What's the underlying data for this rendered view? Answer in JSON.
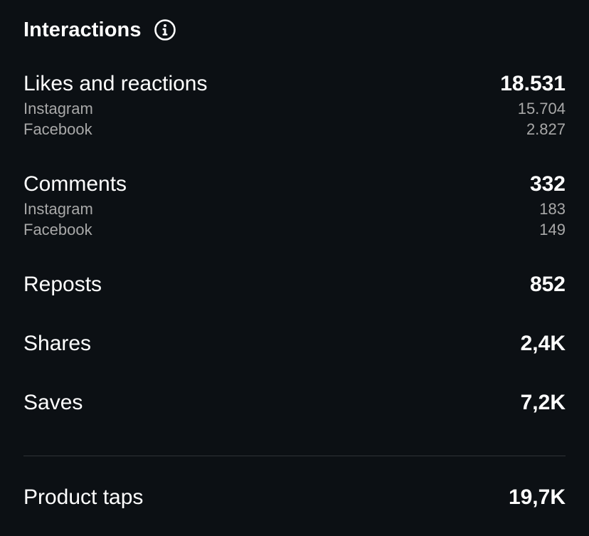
{
  "header": {
    "title": "Interactions",
    "info_icon": "info-icon"
  },
  "metrics": {
    "likes": {
      "label": "Likes and reactions",
      "value": "18.531",
      "breakdown": [
        {
          "label": "Instagram",
          "value": "15.704"
        },
        {
          "label": "Facebook",
          "value": "2.827"
        }
      ]
    },
    "comments": {
      "label": "Comments",
      "value": "332",
      "breakdown": [
        {
          "label": "Instagram",
          "value": "183"
        },
        {
          "label": "Facebook",
          "value": "149"
        }
      ]
    },
    "reposts": {
      "label": "Reposts",
      "value": "852"
    },
    "shares": {
      "label": "Shares",
      "value": "2,4K"
    },
    "saves": {
      "label": "Saves",
      "value": "7,2K"
    },
    "product_taps": {
      "label": "Product taps",
      "value": "19,7K"
    }
  },
  "colors": {
    "background": "#0c1014",
    "primary_text": "#ffffff",
    "secondary_text": "#a8a8a8",
    "divider": "#2f3337"
  }
}
